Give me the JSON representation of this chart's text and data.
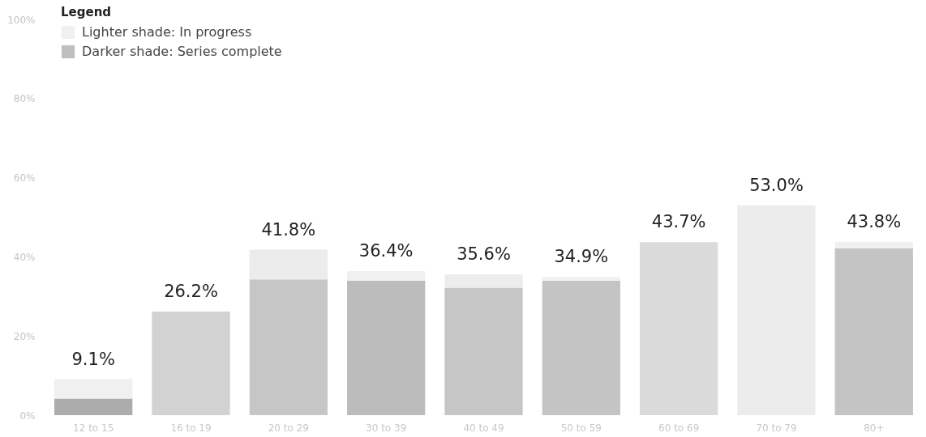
{
  "chart_data": {
    "type": "bar",
    "stacked": true,
    "legend_title": "Legend",
    "legend": "top left",
    "categories": [
      "12 to 15",
      "16 to 19",
      "20 to 29",
      "30 to 39",
      "40 to 49",
      "50 to 59",
      "60 to 69",
      "70 to 79",
      "80+"
    ],
    "series": [
      {
        "name": "Darker shade: Series complete",
        "color": "#a4a4a4",
        "colors": [
          "#acacac",
          "#d2d2d2",
          "#c6c6c6",
          "#bcbcbc",
          "#c6c6c6",
          "#c4c4c4",
          "#dadada",
          "#e8e8e8",
          "#c4c4c4"
        ],
        "values": [
          4.2,
          26.2,
          34.3,
          34.0,
          32.2,
          34.0,
          43.7,
          0,
          42.2
        ]
      },
      {
        "name": "Lighter shade: In progress",
        "color": "#eaeaea",
        "colors": [
          "#f0f0f0",
          "#f0f0f0",
          "#ececec",
          "#f0f0f0",
          "#ececec",
          "#f0f0f0",
          "#f0f0f0",
          "#ececec",
          "#f0f0f0"
        ],
        "values": [
          4.9,
          0,
          7.5,
          2.4,
          3.4,
          0.9,
          0,
          53.0,
          1.6
        ]
      }
    ],
    "totals": [
      "9.1%",
      "26.2%",
      "41.8%",
      "36.4%",
      "35.6%",
      "34.9%",
      "43.7%",
      "53.0%",
      "43.8%"
    ],
    "ylim": [
      0,
      100
    ],
    "yticks": [
      {
        "value": 0,
        "label": "0%"
      },
      {
        "value": 20,
        "label": "20%"
      },
      {
        "value": 40,
        "label": "40%"
      },
      {
        "value": 60,
        "label": "60%"
      },
      {
        "value": 80,
        "label": "80%"
      },
      {
        "value": 100,
        "label": "100%"
      }
    ],
    "grid": false
  }
}
